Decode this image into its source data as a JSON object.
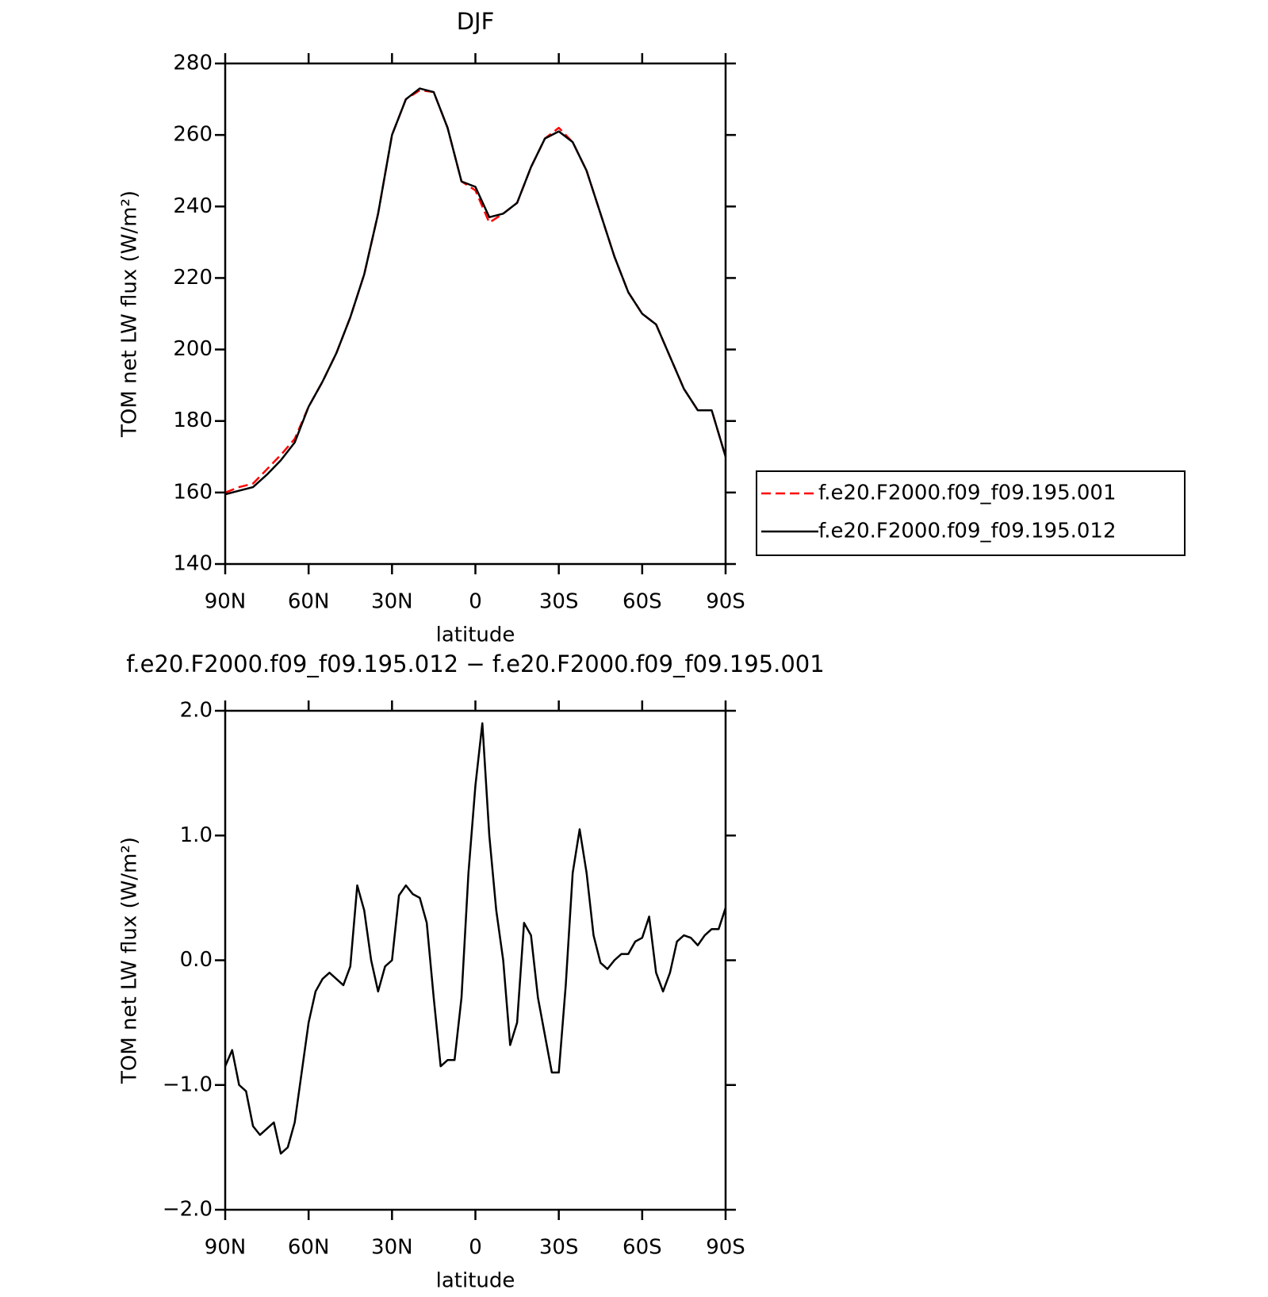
{
  "chart_data": [
    {
      "type": "line",
      "title": "DJF",
      "xlabel": "latitude",
      "ylabel": "TOM net LW flux (W/m²)",
      "x": [
        90,
        85,
        80,
        75,
        70,
        65,
        60,
        55,
        50,
        45,
        40,
        35,
        30,
        25,
        20,
        15,
        10,
        5,
        0,
        -5,
        -10,
        -15,
        -20,
        -25,
        -30,
        -35,
        -40,
        -45,
        -50,
        -55,
        -60,
        -65,
        -70,
        -75,
        -80,
        -85,
        -90
      ],
      "xlim": [
        90,
        -90
      ],
      "xticks": [
        {
          "value": 90,
          "label": "90N"
        },
        {
          "value": 60,
          "label": "60N"
        },
        {
          "value": 30,
          "label": "30N"
        },
        0,
        {
          "value": -30,
          "label": "30S"
        },
        {
          "value": -60,
          "label": "60S"
        },
        {
          "value": -90,
          "label": "90S"
        }
      ],
      "ylim": [
        140,
        280
      ],
      "yticks": [
        140,
        160,
        180,
        200,
        220,
        240,
        260,
        280
      ],
      "legend": "right",
      "series": [
        {
          "name": "f.e20.F2000.f09_f09.195.001",
          "color": "#ff0000",
          "dashed": true,
          "values": [
            160,
            161.5,
            162.5,
            166.5,
            170.5,
            175,
            184,
            191,
            199,
            209,
            221,
            238,
            260,
            270,
            272.5,
            272,
            262,
            247,
            244.5,
            235.5,
            238,
            241,
            251,
            259,
            262,
            258,
            250,
            238,
            226,
            216,
            210,
            207,
            198,
            189,
            183,
            183,
            170
          ]
        },
        {
          "name": "f.e20.F2000.f09_f09.195.012",
          "color": "#000000",
          "dashed": false,
          "values": [
            159.5,
            160.5,
            161.5,
            165,
            169,
            174,
            184,
            191,
            199,
            209,
            221,
            238,
            260,
            270,
            273,
            272,
            262,
            247,
            245.5,
            237,
            238,
            241,
            251,
            259,
            261,
            258,
            250,
            238,
            226,
            216,
            210,
            207,
            198,
            189,
            183,
            183,
            170
          ]
        }
      ]
    },
    {
      "type": "line",
      "title": "f.e20.F2000.f09_f09.195.012 − f.e20.F2000.f09_f09.195.001",
      "xlabel": "latitude",
      "ylabel": "TOM net LW flux (W/m²)",
      "x": [
        90,
        87.5,
        85,
        82.5,
        80,
        77.5,
        75,
        72.5,
        70,
        67.5,
        65,
        62.5,
        60,
        57.5,
        55,
        52.5,
        50,
        47.5,
        45,
        42.5,
        40,
        37.5,
        35,
        32.5,
        30,
        27.5,
        25,
        22.5,
        20,
        17.5,
        15,
        12.5,
        10,
        7.5,
        5,
        2.5,
        0,
        -2.5,
        -5,
        -7.5,
        -10,
        -12.5,
        -15,
        -17.5,
        -20,
        -22.5,
        -25,
        -27.5,
        -30,
        -32.5,
        -35,
        -37.5,
        -40,
        -42.5,
        -45,
        -47.5,
        -50,
        -52.5,
        -55,
        -57.5,
        -60,
        -62.5,
        -65,
        -67.5,
        -70,
        -72.5,
        -75,
        -77.5,
        -80,
        -82.5,
        -85,
        -87.5,
        -90
      ],
      "xlim": [
        90,
        -90
      ],
      "xticks": [
        {
          "value": 90,
          "label": "90N"
        },
        {
          "value": 60,
          "label": "60N"
        },
        {
          "value": 30,
          "label": "30N"
        },
        0,
        {
          "value": -30,
          "label": "30S"
        },
        {
          "value": -60,
          "label": "60S"
        },
        {
          "value": -90,
          "label": "90S"
        }
      ],
      "ylim": [
        -2,
        2
      ],
      "yticks": [
        {
          "value": -2,
          "label": "−2.0"
        },
        {
          "value": -1,
          "label": "−1.0"
        },
        {
          "value": 0,
          "label": "0.0"
        },
        {
          "value": 1,
          "label": "1.0"
        },
        {
          "value": 2,
          "label": "2.0"
        }
      ],
      "series": [
        {
          "color": "#000000",
          "dashed": false,
          "values": [
            -0.85,
            -0.72,
            -1.0,
            -1.05,
            -1.33,
            -1.4,
            -1.35,
            -1.3,
            -1.55,
            -1.5,
            -1.3,
            -0.9,
            -0.5,
            -0.25,
            -0.15,
            -0.1,
            -0.15,
            -0.2,
            -0.05,
            0.6,
            0.4,
            0.0,
            -0.25,
            -0.05,
            0.0,
            0.52,
            0.6,
            0.53,
            0.5,
            0.3,
            -0.3,
            -0.85,
            -0.8,
            -0.8,
            -0.3,
            0.7,
            1.4,
            1.9,
            1.0,
            0.4,
            0.0,
            -0.68,
            -0.5,
            0.3,
            0.2,
            -0.3,
            -0.6,
            -0.9,
            -0.9,
            -0.2,
            0.7,
            1.05,
            0.7,
            0.2,
            -0.02,
            -0.07,
            0.0,
            0.05,
            0.05,
            0.15,
            0.18,
            0.35,
            -0.1,
            -0.25,
            -0.1,
            0.15,
            0.2,
            0.18,
            0.12,
            0.2,
            0.25,
            0.25,
            0.42
          ]
        }
      ]
    }
  ]
}
